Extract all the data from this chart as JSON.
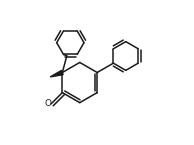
{
  "bg_color": "#ffffff",
  "line_color": "#1a1a1a",
  "line_width": 1.1,
  "dbo": 0.018,
  "figsize": [
    1.94,
    1.45
  ],
  "dpi": 100,
  "xlim": [
    0,
    1
  ],
  "ylim": [
    0,
    1
  ]
}
